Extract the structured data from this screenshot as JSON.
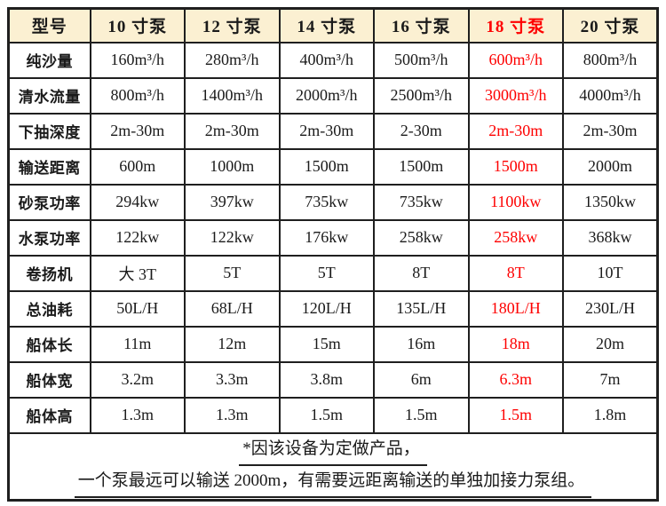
{
  "table": {
    "header": {
      "model_label": "型号",
      "columns": [
        {
          "label": "10 寸泵",
          "highlight": false
        },
        {
          "label": "12 寸泵",
          "highlight": false
        },
        {
          "label": "14 寸泵",
          "highlight": false
        },
        {
          "label": "16 寸泵",
          "highlight": false
        },
        {
          "label": "18 寸泵",
          "highlight": true
        },
        {
          "label": "20 寸泵",
          "highlight": false
        }
      ]
    },
    "highlight_column_index": 4,
    "rows": [
      {
        "label": "纯沙量",
        "values": [
          "160m³/h",
          "280m³/h",
          "400m³/h",
          "500m³/h",
          "600m³/h",
          "800m³/h"
        ]
      },
      {
        "label": "清水流量",
        "values": [
          "800m³/h",
          "1400m³/h",
          "2000m³/h",
          "2500m³/h",
          "3000m³/h",
          "4000m³/h"
        ]
      },
      {
        "label": "下抽深度",
        "values": [
          "2m-30m",
          "2m-30m",
          "2m-30m",
          "2-30m",
          "2m-30m",
          "2m-30m"
        ]
      },
      {
        "label": "输送距离",
        "values": [
          "600m",
          "1000m",
          "1500m",
          "1500m",
          "1500m",
          "2000m"
        ]
      },
      {
        "label": "砂泵功率",
        "values": [
          "294kw",
          "397kw",
          "735kw",
          "735kw",
          "1100kw",
          "1350kw"
        ]
      },
      {
        "label": "水泵功率",
        "values": [
          "122kw",
          "122kw",
          "176kw",
          "258kw",
          "258kw",
          "368kw"
        ]
      },
      {
        "label": "卷扬机",
        "values": [
          "大 3T",
          "5T",
          "5T",
          "8T",
          "8T",
          "10T"
        ]
      },
      {
        "label": "总油耗",
        "values": [
          "50L/H",
          "68L/H",
          "120L/H",
          "135L/H",
          "180L/H",
          "230L/H"
        ]
      },
      {
        "label": "船体长",
        "values": [
          "11m",
          "12m",
          "15m",
          "16m",
          "18m",
          "20m"
        ]
      },
      {
        "label": "船体宽",
        "values": [
          "3.2m",
          "3.3m",
          "3.8m",
          "6m",
          "6.3m",
          "7m"
        ]
      },
      {
        "label": "船体高",
        "values": [
          "1.3m",
          "1.3m",
          "1.5m",
          "1.5m",
          "1.5m",
          "1.8m"
        ]
      }
    ],
    "footnote_line1": "*因该设备为定做产品，",
    "footnote_line2": "一个泵最远可以输送 2000m，有需要远距离输送的单独加接力泵组。",
    "colors": {
      "header_bg": "#FBF0D2",
      "highlight_text": "#FE0000",
      "body_text": "#1A1A1A",
      "border": "#1F1F1F"
    }
  }
}
